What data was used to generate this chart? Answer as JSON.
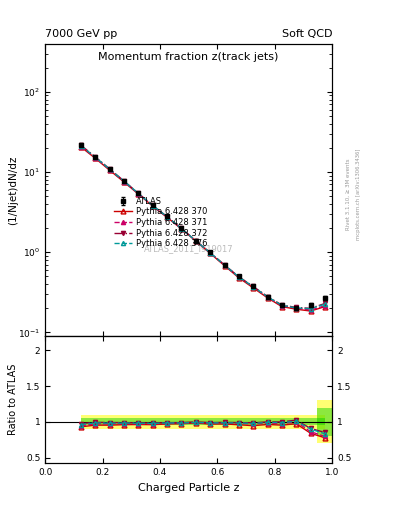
{
  "title_main": "Momentum fraction z(track jets)",
  "header_left": "7000 GeV pp",
  "header_right": "Soft QCD",
  "ylabel_main": "(1/Njet)dN/dz",
  "ylabel_ratio": "Ratio to ATLAS",
  "xlabel": "Charged Particle z",
  "watermark": "ATLAS_2011_I919017",
  "right_label1": "Rivet 3.1.10, ≥ 3M events",
  "right_label2": "mcplots.cern.ch [arXiv:1306.3436]",
  "ylim_main": [
    0.09,
    400
  ],
  "ylim_ratio": [
    0.42,
    2.2
  ],
  "xmin": 0.0,
  "xmax": 1.0,
  "atlas_x": [
    0.125,
    0.175,
    0.225,
    0.275,
    0.325,
    0.375,
    0.425,
    0.475,
    0.525,
    0.575,
    0.625,
    0.675,
    0.725,
    0.775,
    0.825,
    0.875,
    0.925,
    0.975
  ],
  "atlas_y": [
    22.0,
    15.5,
    11.0,
    7.8,
    5.5,
    3.9,
    2.8,
    2.0,
    1.4,
    1.0,
    0.7,
    0.5,
    0.38,
    0.28,
    0.22,
    0.2,
    0.22,
    0.27
  ],
  "atlas_yerr": [
    0.8,
    0.5,
    0.35,
    0.25,
    0.18,
    0.13,
    0.09,
    0.065,
    0.045,
    0.033,
    0.023,
    0.017,
    0.013,
    0.01,
    0.008,
    0.008,
    0.01,
    0.015
  ],
  "py370_y": [
    20.5,
    14.8,
    10.5,
    7.5,
    5.3,
    3.75,
    2.72,
    1.95,
    1.38,
    0.97,
    0.68,
    0.48,
    0.36,
    0.27,
    0.21,
    0.195,
    0.185,
    0.21
  ],
  "py371_y": [
    20.8,
    15.1,
    10.7,
    7.6,
    5.35,
    3.8,
    2.74,
    1.96,
    1.39,
    0.98,
    0.69,
    0.49,
    0.37,
    0.275,
    0.215,
    0.2,
    0.19,
    0.215
  ],
  "py372_y": [
    21.5,
    15.4,
    10.9,
    7.72,
    5.42,
    3.84,
    2.77,
    1.98,
    1.4,
    0.99,
    0.695,
    0.495,
    0.375,
    0.28,
    0.22,
    0.205,
    0.2,
    0.23
  ],
  "py376_y": [
    21.2,
    15.3,
    10.8,
    7.68,
    5.4,
    3.82,
    2.76,
    1.97,
    1.39,
    0.985,
    0.692,
    0.492,
    0.372,
    0.278,
    0.218,
    0.202,
    0.198,
    0.225
  ],
  "color_370": "#cc0000",
  "color_371": "#cc0066",
  "color_372": "#990033",
  "color_376": "#009999",
  "band_green_color": "#00cc00",
  "band_yellow_color": "#ffff00",
  "band_green_alpha": 0.45,
  "band_yellow_alpha": 0.55
}
